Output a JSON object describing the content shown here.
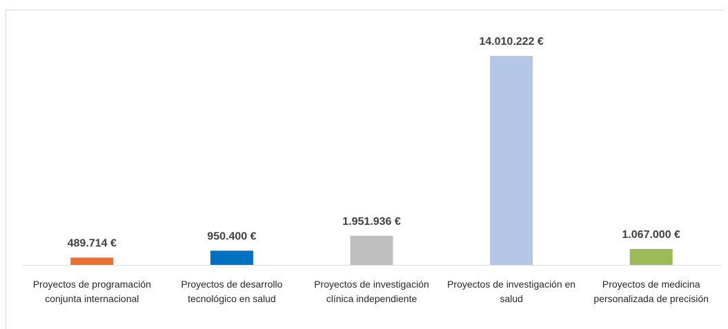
{
  "chart_data": {
    "type": "bar",
    "categories": [
      "Proyectos de programación conjunta internacional",
      "Proyectos de desarrollo tecnológico en salud",
      "Proyectos de investigación clínica independiente",
      "Proyectos de investigación en salud",
      "Proyectos de medicina personalizada de precisión"
    ],
    "values": [
      489714,
      950400,
      1951936,
      14010222,
      1067000
    ],
    "value_labels": [
      "489.714 €",
      "950.400 €",
      "1.951.936 €",
      "14.010.222 €",
      "1.067.000 €"
    ],
    "colors": [
      "#e97132",
      "#0070c0",
      "#bfbfbf",
      "#b4c7e7",
      "#9bbb59"
    ]
  }
}
